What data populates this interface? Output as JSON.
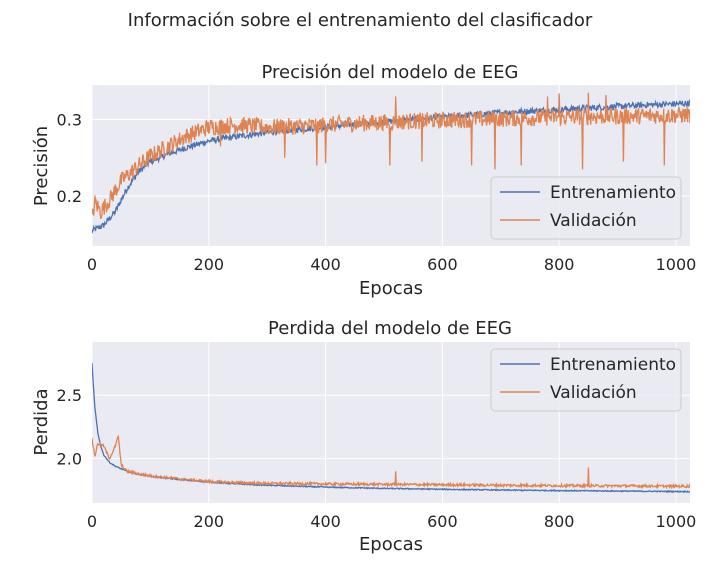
{
  "figure": {
    "suptitle": "Información sobre el entrenamiento del clasificador"
  },
  "chart_data": [
    {
      "type": "line",
      "title": "Precisión del modelo de EEG",
      "xlabel": "Epocas",
      "ylabel": "Precisión",
      "xlim": [
        0,
        1024
      ],
      "ylim": [
        0.135,
        0.345
      ],
      "xticks": [
        0,
        200,
        400,
        600,
        800,
        1000
      ],
      "xtick_labels": [
        "0",
        "200",
        "400",
        "600",
        "800",
        "1000"
      ],
      "yticks": [
        0.2,
        0.3
      ],
      "ytick_labels": [
        "0.2",
        "0.3"
      ],
      "grid": true,
      "legend_position": "lower-right",
      "series": [
        {
          "name": "Entrenamiento",
          "color": "#4c72b0",
          "x": [
            0,
            20,
            40,
            60,
            80,
            100,
            130,
            160,
            200,
            250,
            300,
            350,
            400,
            450,
            500,
            550,
            600,
            650,
            700,
            750,
            800,
            850,
            900,
            950,
            1024
          ],
          "y": [
            0.155,
            0.162,
            0.18,
            0.21,
            0.232,
            0.245,
            0.255,
            0.263,
            0.272,
            0.278,
            0.283,
            0.287,
            0.29,
            0.294,
            0.297,
            0.3,
            0.303,
            0.306,
            0.309,
            0.311,
            0.313,
            0.315,
            0.317,
            0.319,
            0.321
          ],
          "noise": 0.004
        },
        {
          "name": "Validación",
          "color": "#dd8452",
          "x": [
            0,
            5,
            15,
            30,
            50,
            80,
            100,
            130,
            160,
            200,
            250,
            300,
            350,
            400,
            450,
            500,
            550,
            600,
            650,
            700,
            750,
            800,
            850,
            900,
            950,
            1024
          ],
          "y": [
            0.17,
            0.192,
            0.18,
            0.195,
            0.22,
            0.24,
            0.252,
            0.265,
            0.278,
            0.29,
            0.293,
            0.29,
            0.291,
            0.293,
            0.295,
            0.296,
            0.298,
            0.299,
            0.3,
            0.301,
            0.302,
            0.303,
            0.304,
            0.304,
            0.305,
            0.306
          ],
          "noise": 0.011,
          "dips": [
            [
              220,
              0.265
            ],
            [
              330,
              0.25
            ],
            [
              385,
              0.24
            ],
            [
              400,
              0.243
            ],
            [
              510,
              0.24
            ],
            [
              565,
              0.245
            ],
            [
              650,
              0.24
            ],
            [
              690,
              0.235
            ],
            [
              735,
              0.24
            ],
            [
              840,
              0.235
            ],
            [
              910,
              0.245
            ],
            [
              980,
              0.24
            ]
          ],
          "spikes": [
            [
              520,
              0.33
            ],
            [
              780,
              0.33
            ],
            [
              800,
              0.334
            ],
            [
              850,
              0.335
            ],
            [
              880,
              0.332
            ]
          ]
        }
      ]
    },
    {
      "type": "line",
      "title": "Perdida del modelo de EEG",
      "xlabel": "Epocas",
      "ylabel": "Perdida",
      "xlim": [
        0,
        1024
      ],
      "ylim": [
        1.65,
        2.92
      ],
      "xticks": [
        0,
        200,
        400,
        600,
        800,
        1000
      ],
      "xtick_labels": [
        "0",
        "200",
        "400",
        "600",
        "800",
        "1000"
      ],
      "yticks": [
        2.0,
        2.5
      ],
      "ytick_labels": [
        "2.0",
        "2.5"
      ],
      "grid": true,
      "legend_position": "upper-right",
      "series": [
        {
          "name": "Entrenamiento",
          "color": "#4c72b0",
          "x": [
            0,
            2,
            5,
            10,
            15,
            20,
            30,
            40,
            60,
            80,
            100,
            150,
            200,
            250,
            300,
            400,
            500,
            600,
            700,
            800,
            900,
            1024
          ],
          "y": [
            2.75,
            2.6,
            2.4,
            2.2,
            2.1,
            2.03,
            1.97,
            1.94,
            1.9,
            1.875,
            1.86,
            1.835,
            1.815,
            1.8,
            1.79,
            1.775,
            1.765,
            1.758,
            1.752,
            1.748,
            1.744,
            1.74
          ],
          "noise": 0.004
        },
        {
          "name": "Validación",
          "color": "#dd8452",
          "x": [
            0,
            5,
            10,
            20,
            30,
            40,
            45,
            50,
            60,
            80,
            100,
            150,
            200,
            250,
            300,
            400,
            500,
            600,
            700,
            800,
            900,
            1024
          ],
          "y": [
            2.15,
            2.02,
            2.12,
            2.1,
            2.0,
            2.1,
            2.18,
            1.95,
            1.9,
            1.88,
            1.865,
            1.84,
            1.82,
            1.81,
            1.805,
            1.8,
            1.797,
            1.794,
            1.79,
            1.787,
            1.785,
            1.782
          ],
          "noise": 0.01,
          "spikes": [
            [
              520,
              1.9
            ],
            [
              850,
              1.93
            ]
          ]
        }
      ]
    }
  ]
}
